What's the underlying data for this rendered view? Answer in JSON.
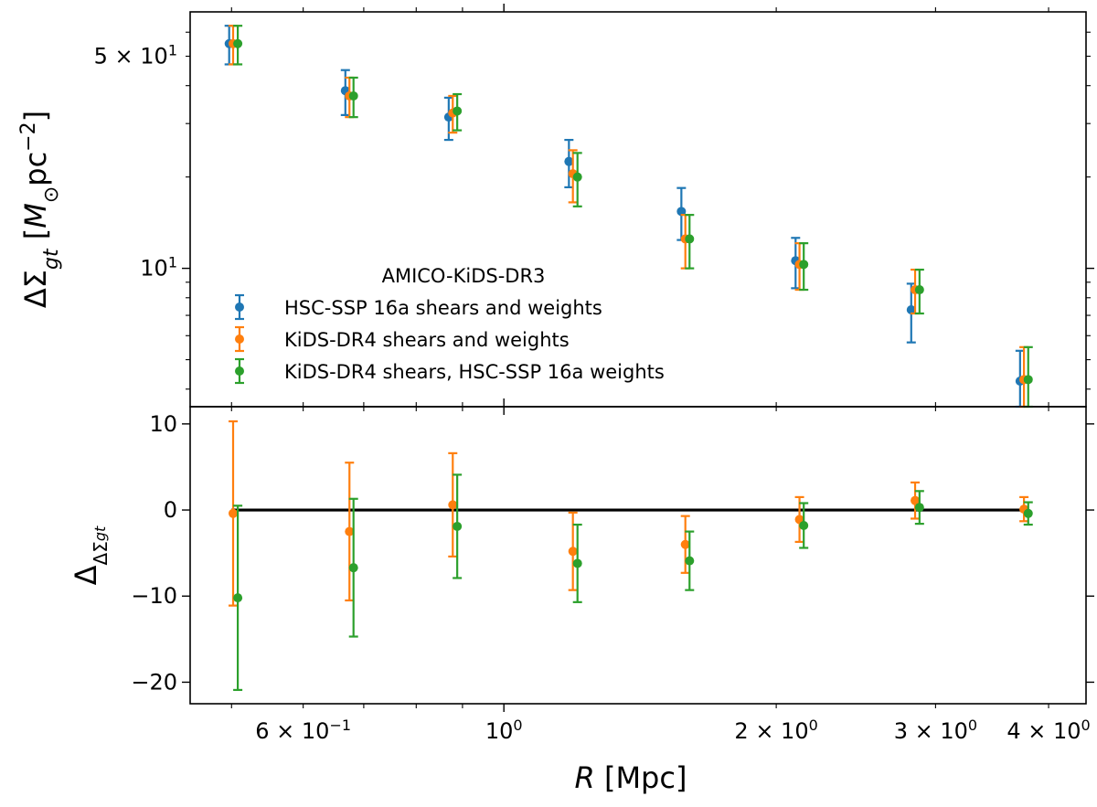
{
  "chart_data": [
    {
      "type": "scatter",
      "panel": "top",
      "yscale": "log",
      "xscale": "log",
      "xlim": [
        0.45,
        4.4
      ],
      "ylim": [
        3.5,
        70
      ],
      "ylabel": "ΔΣgt [M⊙pc⁻²]",
      "yticks": [
        {
          "value": 50,
          "base": "5 × 10",
          "exp": "1"
        },
        {
          "value": 10,
          "base": "10",
          "exp": "1"
        }
      ],
      "legend": {
        "title": "AMICO-KiDS-DR3",
        "location": "lower-left",
        "entries": [
          "HSC-SSP 16a shears and weights",
          "KiDS-DR4 shears and weights",
          "KiDS-DR4 shears, HSC-SSP 16a weights"
        ]
      },
      "series": [
        {
          "name": "HSC-SSP 16a shears and weights",
          "color": "#1f77b4",
          "x": [
            0.497,
            0.668,
            0.869,
            1.18,
            1.571,
            2.101,
            2.82,
            3.72
          ],
          "y": [
            55.0,
            38.5,
            31.5,
            22.5,
            15.4,
            10.6,
            7.3,
            4.25
          ],
          "err_low": [
            8.0,
            6.5,
            5.0,
            4.0,
            3.0,
            2.0,
            1.6,
            1.1
          ],
          "err_high": [
            8.0,
            6.5,
            5.0,
            4.0,
            3.0,
            2.0,
            1.6,
            1.1
          ]
        },
        {
          "name": "KiDS-DR4 shears and weights",
          "color": "#ff7f0e",
          "x": [
            0.502,
            0.675,
            0.878,
            1.192,
            1.587,
            2.122,
            2.848,
            3.757
          ],
          "y": [
            55.0,
            37.0,
            32.5,
            20.5,
            12.5,
            10.3,
            8.5,
            4.3
          ],
          "err_low": [
            8.0,
            5.5,
            4.5,
            4.0,
            2.5,
            1.8,
            1.4,
            1.2
          ],
          "err_high": [
            8.0,
            5.5,
            4.5,
            4.0,
            2.5,
            1.8,
            1.4,
            1.2
          ]
        },
        {
          "name": "KiDS-DR4 shears, HSC-SSP 16a weights",
          "color": "#2ca02c",
          "x": [
            0.508,
            0.682,
            0.888,
            1.206,
            1.604,
            2.145,
            2.88,
            3.798
          ],
          "y": [
            55.0,
            37.0,
            33.0,
            20.0,
            12.5,
            10.3,
            8.5,
            4.3
          ],
          "err_low": [
            8.0,
            5.5,
            4.5,
            4.0,
            2.5,
            1.8,
            1.4,
            1.2
          ],
          "err_high": [
            8.0,
            5.5,
            4.5,
            4.0,
            2.5,
            1.8,
            1.4,
            1.2
          ]
        }
      ]
    },
    {
      "type": "scatter",
      "panel": "bottom",
      "xscale": "log",
      "yscale": "linear",
      "xlim": [
        0.45,
        4.4
      ],
      "ylim": [
        -22.5,
        12.0
      ],
      "xlabel": "R [Mpc]",
      "ylabel": "ΔΔΣgt",
      "reference_line": {
        "y": 0,
        "x_from": 0.5,
        "x_to": 3.8,
        "color": "#000000"
      },
      "yticks": [
        {
          "value": 10,
          "label": "10"
        },
        {
          "value": 0,
          "label": "0"
        },
        {
          "value": -10,
          "label": "−10"
        },
        {
          "value": -20,
          "label": "−20"
        }
      ],
      "xticks": [
        {
          "value": 0.6,
          "base": "6 × 10",
          "exp": "−1"
        },
        {
          "value": 1.0,
          "base": "10",
          "exp": "0"
        },
        {
          "value": 2.0,
          "base": "2 × 10",
          "exp": "0"
        },
        {
          "value": 3.0,
          "base": "3 × 10",
          "exp": "0"
        },
        {
          "value": 4.0,
          "base": "4 × 10",
          "exp": "0"
        }
      ],
      "series": [
        {
          "name": "KiDS-DR4 shears and weights",
          "color": "#ff7f0e",
          "x": [
            0.502,
            0.675,
            0.878,
            1.192,
            1.587,
            2.122,
            2.848,
            3.757
          ],
          "y": [
            -0.4,
            -2.5,
            0.6,
            -4.8,
            -4.0,
            -1.1,
            1.1,
            0.1
          ],
          "err_low": [
            10.7,
            8.0,
            6.0,
            4.5,
            3.3,
            2.6,
            2.1,
            1.4
          ],
          "err_high": [
            10.7,
            8.0,
            6.0,
            4.5,
            3.3,
            2.6,
            2.1,
            1.4
          ]
        },
        {
          "name": "KiDS-DR4 shears, HSC-SSP 16a weights",
          "color": "#2ca02c",
          "x": [
            0.508,
            0.682,
            0.888,
            1.206,
            1.604,
            2.145,
            2.88,
            3.798
          ],
          "y": [
            -10.2,
            -6.7,
            -1.9,
            -6.2,
            -5.9,
            -1.8,
            0.3,
            -0.4
          ],
          "err_low": [
            10.7,
            8.0,
            6.0,
            4.5,
            3.4,
            2.6,
            1.9,
            1.3
          ],
          "err_high": [
            10.7,
            8.0,
            6.0,
            4.5,
            3.4,
            2.6,
            1.9,
            1.3
          ]
        }
      ]
    }
  ]
}
